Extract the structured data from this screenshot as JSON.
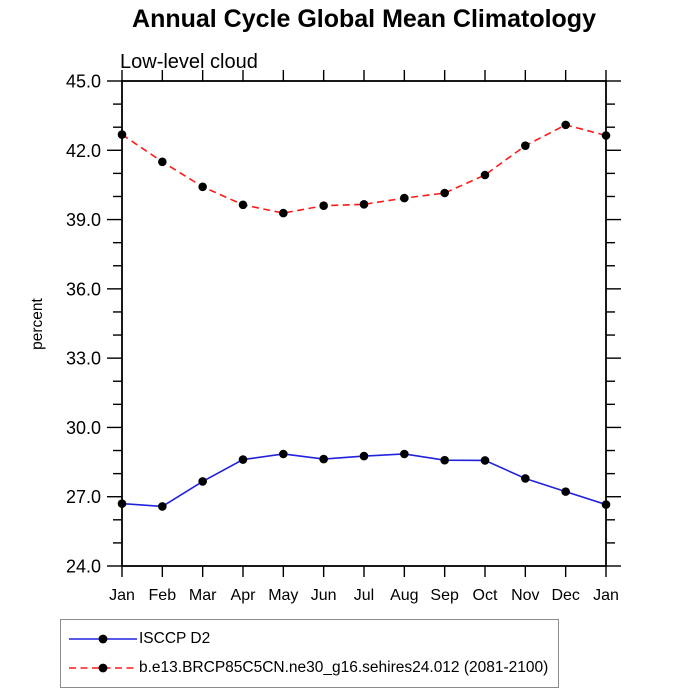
{
  "chart_data": {
    "type": "line",
    "title": "Annual Cycle Global Mean Climatology",
    "subtitle": "Low-level cloud",
    "xlabel": "",
    "ylabel": "percent",
    "categories": [
      "Jan",
      "Feb",
      "Mar",
      "Apr",
      "May",
      "Jun",
      "Jul",
      "Aug",
      "Sep",
      "Oct",
      "Nov",
      "Dec",
      "Jan"
    ],
    "series": [
      {
        "name": "ISCCP D2",
        "color": "#2222dd",
        "line_style": "solid",
        "marker": "circle",
        "marker_color": "#000000",
        "values": [
          26.7,
          26.58,
          27.66,
          28.61,
          28.85,
          28.63,
          28.76,
          28.85,
          28.58,
          28.57,
          27.79,
          27.22,
          26.66
        ]
      },
      {
        "name": "b.e13.BRCP85C5CN.ne30_g16.sehires24.012 (2081-2100)",
        "color": "#ff1a1a",
        "line_style": "dashed",
        "marker": "circle",
        "marker_color": "#000000",
        "values": [
          42.68,
          41.5,
          40.42,
          39.64,
          39.28,
          39.6,
          39.66,
          39.93,
          40.15,
          40.93,
          42.2,
          43.1,
          42.64
        ]
      }
    ],
    "ylim": [
      24.0,
      45.0
    ],
    "yticks_major": [
      24.0,
      27.0,
      30.0,
      33.0,
      36.0,
      39.0,
      42.0,
      45.0
    ],
    "ytick_minor_step": 1.0,
    "ytick_label_format": "one_decimal",
    "grid": false,
    "frame": "box",
    "tick_direction": "out",
    "legend_position": "bottom-left",
    "axis_color": "#000000",
    "text_color": "#000000"
  }
}
